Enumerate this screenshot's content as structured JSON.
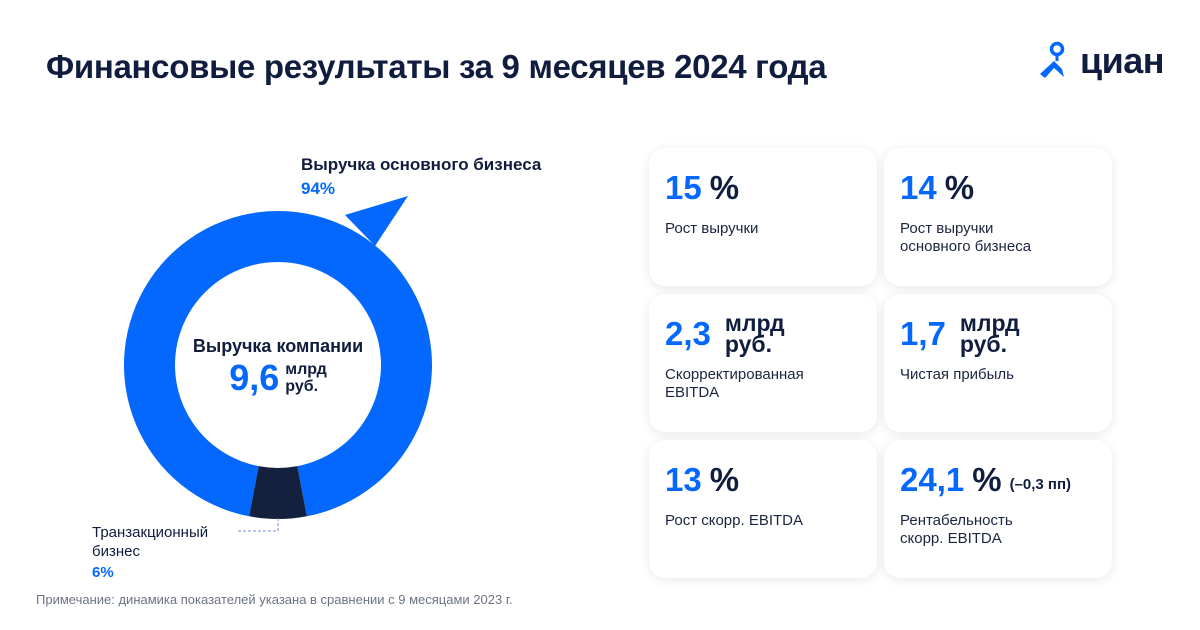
{
  "header": {
    "title": "Финансовые результаты за 9 месяцев 2024 года",
    "logo_text": "циан"
  },
  "colors": {
    "accent": "#0468ff",
    "dark": "#13213f"
  },
  "chart_data": {
    "type": "pie",
    "title": "Выручка компании",
    "total": {
      "value": "9,6",
      "unit_line1": "млрд",
      "unit_line2": "руб."
    },
    "slices": [
      {
        "label": "Выручка основного бизнеса",
        "value": 94,
        "display": "94%",
        "color": "#0468ff"
      },
      {
        "label_line1": "Транзакционный",
        "label_line2": "бизнес",
        "value": 6,
        "display": "6%",
        "color": "#13213f"
      }
    ]
  },
  "cards": [
    {
      "value": "15",
      "unit": "%",
      "desc": [
        "Рост выручки"
      ]
    },
    {
      "value": "14",
      "unit": "%",
      "desc": [
        "Рост выручки",
        "основного бизнеса"
      ]
    },
    {
      "value": "2,3",
      "unit_line1": "млрд",
      "unit_line2": "руб.",
      "desc": [
        "Скорректированная",
        "EBITDA"
      ]
    },
    {
      "value": "1,7",
      "unit_line1": "млрд",
      "unit_line2": "руб.",
      "desc": [
        "Чистая прибыль"
      ]
    },
    {
      "value": "13",
      "unit": "%",
      "desc": [
        "Рост скорр. EBITDA"
      ]
    },
    {
      "value": "24,1",
      "unit": "%",
      "extra": "(–0,3 пп)",
      "desc": [
        "Рентабельность",
        "скорр. EBITDA"
      ]
    }
  ],
  "note": "Примечание: динамика показателей указана в сравнении с 9 месяцами 2023 г."
}
